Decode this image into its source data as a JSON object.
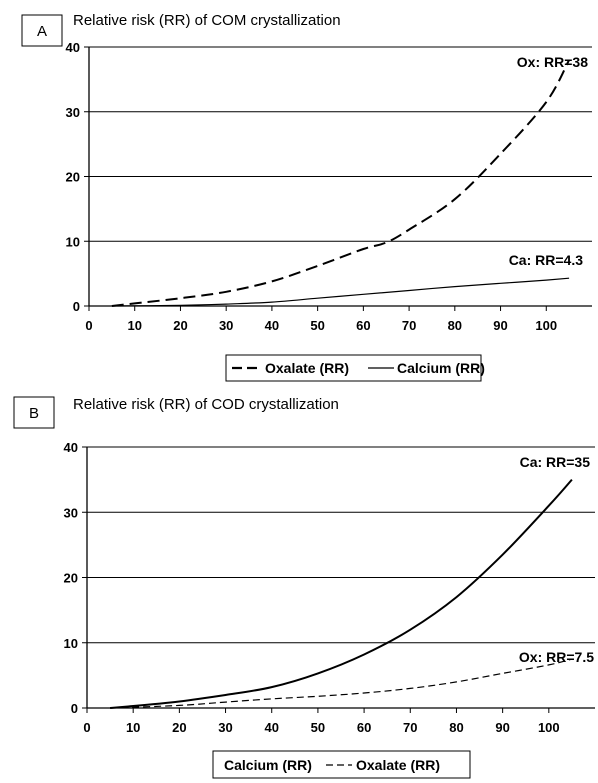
{
  "chart_data": [
    {
      "panel": "A",
      "type": "line",
      "title": "Relative risk (RR) of COM crystallization",
      "xlabel": "",
      "ylabel": "",
      "xlim": [
        0,
        110
      ],
      "ylim": [
        0,
        40
      ],
      "xticks": [
        0,
        10,
        20,
        30,
        40,
        50,
        60,
        70,
        80,
        90,
        100
      ],
      "yticks": [
        0,
        10,
        20,
        30,
        40
      ],
      "grid": true,
      "legend_position": "bottom",
      "series": [
        {
          "name": "Oxalate (RR)",
          "style": "dashed",
          "stroke": "#000000",
          "x": [
            5,
            10,
            20,
            30,
            40,
            50,
            60,
            65,
            70,
            80,
            90,
            100,
            105
          ],
          "y": [
            0,
            0.4,
            1.2,
            2.2,
            3.8,
            6.2,
            8.8,
            9.8,
            11.8,
            16.5,
            23.5,
            31.5,
            38
          ]
        },
        {
          "name": "Calcium (RR)",
          "style": "solid",
          "stroke": "#000000",
          "x": [
            5,
            20,
            30,
            40,
            50,
            60,
            70,
            80,
            90,
            100,
            105
          ],
          "y": [
            0,
            0.1,
            0.3,
            0.6,
            1.2,
            1.8,
            2.4,
            3.0,
            3.5,
            4.0,
            4.3
          ]
        }
      ],
      "annotations": [
        {
          "text": "Ox: RR=38",
          "x": 104,
          "y": 38
        },
        {
          "text": "Ca: RR=4.3",
          "x": 104,
          "y": 4.3
        }
      ]
    },
    {
      "panel": "B",
      "type": "line",
      "title": "Relative risk (RR) of COD crystallization",
      "xlabel": "",
      "ylabel": "",
      "xlim": [
        0,
        110
      ],
      "ylim": [
        0,
        40
      ],
      "xticks": [
        0,
        10,
        20,
        30,
        40,
        50,
        60,
        70,
        80,
        90,
        100
      ],
      "yticks": [
        0,
        10,
        20,
        30,
        40
      ],
      "grid": true,
      "legend_position": "bottom",
      "series": [
        {
          "name": "Calcium (RR)",
          "style": "solid",
          "stroke": "#000000",
          "x": [
            5,
            10,
            20,
            30,
            40,
            50,
            60,
            70,
            80,
            90,
            100,
            105
          ],
          "y": [
            0,
            0.3,
            1.0,
            2.0,
            3.2,
            5.3,
            8.2,
            12.0,
            17.0,
            23.5,
            31.0,
            35
          ]
        },
        {
          "name": "Oxalate (RR)",
          "style": "dashed",
          "stroke": "#000000",
          "x": [
            5,
            20,
            30,
            40,
            50,
            60,
            70,
            80,
            90,
            100,
            105
          ],
          "y": [
            0,
            0.4,
            0.9,
            1.4,
            1.8,
            2.3,
            3.0,
            4.0,
            5.3,
            6.6,
            7.5
          ]
        }
      ],
      "annotations": [
        {
          "text": "Ca: RR=35",
          "x": 104,
          "y": 35
        },
        {
          "text": "Ox: RR=7.5",
          "x": 104,
          "y": 7.5
        }
      ]
    }
  ]
}
